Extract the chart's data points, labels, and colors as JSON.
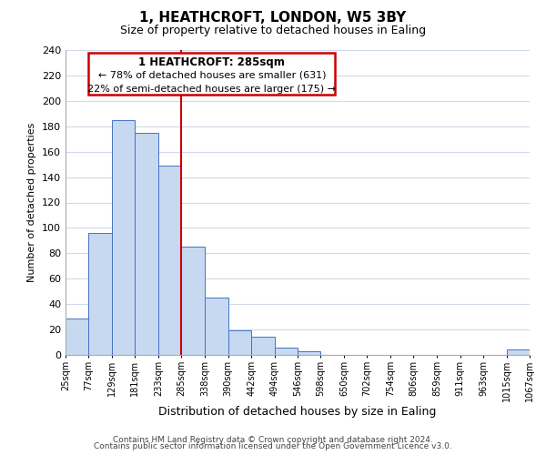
{
  "title": "1, HEATHCROFT, LONDON, W5 3BY",
  "subtitle": "Size of property relative to detached houses in Ealing",
  "xlabel": "Distribution of detached houses by size in Ealing",
  "ylabel": "Number of detached properties",
  "bar_left_edges": [
    25,
    77,
    129,
    181,
    233,
    285,
    338,
    390,
    442,
    494,
    546,
    598,
    650,
    702,
    754,
    806,
    859,
    911,
    963,
    1015
  ],
  "bar_heights": [
    29,
    96,
    185,
    175,
    149,
    85,
    45,
    19,
    14,
    6,
    3,
    0,
    0,
    0,
    0,
    0,
    0,
    0,
    0,
    4
  ],
  "bar_widths": [
    52,
    52,
    52,
    52,
    52,
    53,
    52,
    52,
    52,
    52,
    52,
    52,
    52,
    52,
    52,
    53,
    52,
    52,
    52,
    52
  ],
  "tick_labels": [
    "25sqm",
    "77sqm",
    "129sqm",
    "181sqm",
    "233sqm",
    "285sqm",
    "338sqm",
    "390sqm",
    "442sqm",
    "494sqm",
    "546sqm",
    "598sqm",
    "650sqm",
    "702sqm",
    "754sqm",
    "806sqm",
    "859sqm",
    "911sqm",
    "963sqm",
    "1015sqm",
    "1067sqm"
  ],
  "bar_color": "#c6d9f1",
  "bar_edge_color": "#4472c4",
  "vline_x": 285,
  "vline_color": "#cc0000",
  "ylim": [
    0,
    240
  ],
  "yticks": [
    0,
    20,
    40,
    60,
    80,
    100,
    120,
    140,
    160,
    180,
    200,
    220,
    240
  ],
  "annotation_title": "1 HEATHCROFT: 285sqm",
  "annotation_line1": "← 78% of detached houses are smaller (631)",
  "annotation_line2": "22% of semi-detached houses are larger (175) →",
  "footer1": "Contains HM Land Registry data © Crown copyright and database right 2024.",
  "footer2": "Contains public sector information licensed under the Open Government Licence v3.0.",
  "background_color": "#ffffff",
  "grid_color": "#d0daea"
}
